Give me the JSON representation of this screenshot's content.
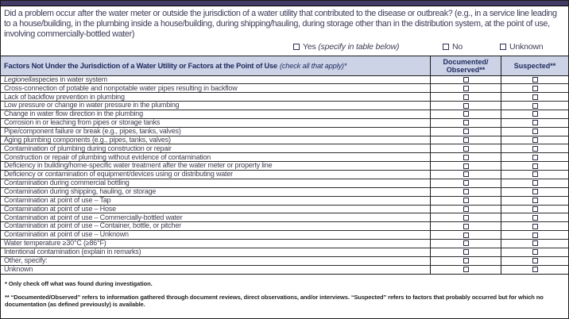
{
  "colors": {
    "top_bar": "#423c66",
    "header_bg": "#ccd3e7",
    "header_text": "#1e2a5c",
    "question_text": "#3c3c58",
    "body_text": "#3e3e50",
    "border": "#1a1a1a"
  },
  "question": {
    "text": "Did a problem occur after the water meter or outside the jurisdiction of a water utility that contributed to the disease or outbreak? (e.g., in a service line leading to a house/building, in the plumbing inside a house/building, during shipping/hauling, during storage other than in the distribution system, at the point of use, involving commercially-bottled water)",
    "options": [
      {
        "label": "Yes",
        "note": "(specify in table below)",
        "checked": false
      },
      {
        "label": "No",
        "checked": false
      },
      {
        "label": "Unknown",
        "checked": false
      }
    ]
  },
  "table": {
    "header": {
      "factor_title_bold": "Factors Not Under the Jurisdiction of a Water Utility or Factors at the Point of Use",
      "factor_title_italic": "(check all that apply)*",
      "col_documented_line1": "Documented/",
      "col_documented_line2": "Observed**",
      "col_suspected": "Suspected**"
    },
    "rows": [
      {
        "label": "Legionella species in water system",
        "italic_prefix": "Legionella",
        "documented": false,
        "suspected": false
      },
      {
        "label": "Cross-connection of potable and nonpotable water pipes resulting in backflow",
        "documented": false,
        "suspected": false
      },
      {
        "label": "Lack of backflow prevention in plumbing",
        "documented": false,
        "suspected": false
      },
      {
        "label": "Low pressure or change in water pressure in the plumbing",
        "documented": false,
        "suspected": false
      },
      {
        "label": "Change in water flow direction in the plumbing",
        "documented": false,
        "suspected": false
      },
      {
        "label": "Corrosion in or leaching from pipes or storage tanks",
        "documented": false,
        "suspected": false
      },
      {
        "label": "Pipe/component failure or break (e.g., pipes, tanks, valves)",
        "documented": false,
        "suspected": false
      },
      {
        "label": "Aging plumbing components (e.g., pipes, tanks, valves)",
        "documented": false,
        "suspected": false
      },
      {
        "label": "Contamination of plumbing during construction or repair",
        "documented": false,
        "suspected": false
      },
      {
        "label": "Construction or repair of plumbing without evidence of contamination",
        "documented": false,
        "suspected": false
      },
      {
        "label": "Deficiency in building/home-specific water treatment after the water meter or property line",
        "documented": false,
        "suspected": false
      },
      {
        "label": "Deficiency or contamination of equipment/devices using or distributing water",
        "documented": false,
        "suspected": false
      },
      {
        "label": "Contamination during commercial bottling",
        "documented": false,
        "suspected": false
      },
      {
        "label": "Contamination during shipping, hauling, or storage",
        "documented": false,
        "suspected": false
      },
      {
        "label": "Contamination at point of use – Tap",
        "documented": false,
        "suspected": false
      },
      {
        "label": "Contamination at point of use – Hose",
        "documented": false,
        "suspected": false
      },
      {
        "label": "Contamination at point of use – Commercially-bottled water",
        "documented": false,
        "suspected": false
      },
      {
        "label": "Contamination at point of use – Container, bottle, or pitcher",
        "documented": false,
        "suspected": false
      },
      {
        "label": "Contamination at point of use – Unknown",
        "documented": false,
        "suspected": false
      },
      {
        "label": "Water temperature ≥30°C (≥86°F)",
        "documented": false,
        "suspected": false
      },
      {
        "label": "Intentional contamination (explain in remarks)",
        "documented": false,
        "suspected": false
      },
      {
        "label": "Other, specify:",
        "documented": false,
        "suspected": false
      },
      {
        "label": "Unknown",
        "documented": false,
        "suspected": false
      }
    ]
  },
  "footnotes": [
    "* Only check off what was found during investigation.",
    "** “Documented/Observed” refers to information gathered through document reviews, direct observations, and/or interviews. “Suspected” refers to factors that probably occurred but for which no documentation (as defined previously) is available."
  ]
}
